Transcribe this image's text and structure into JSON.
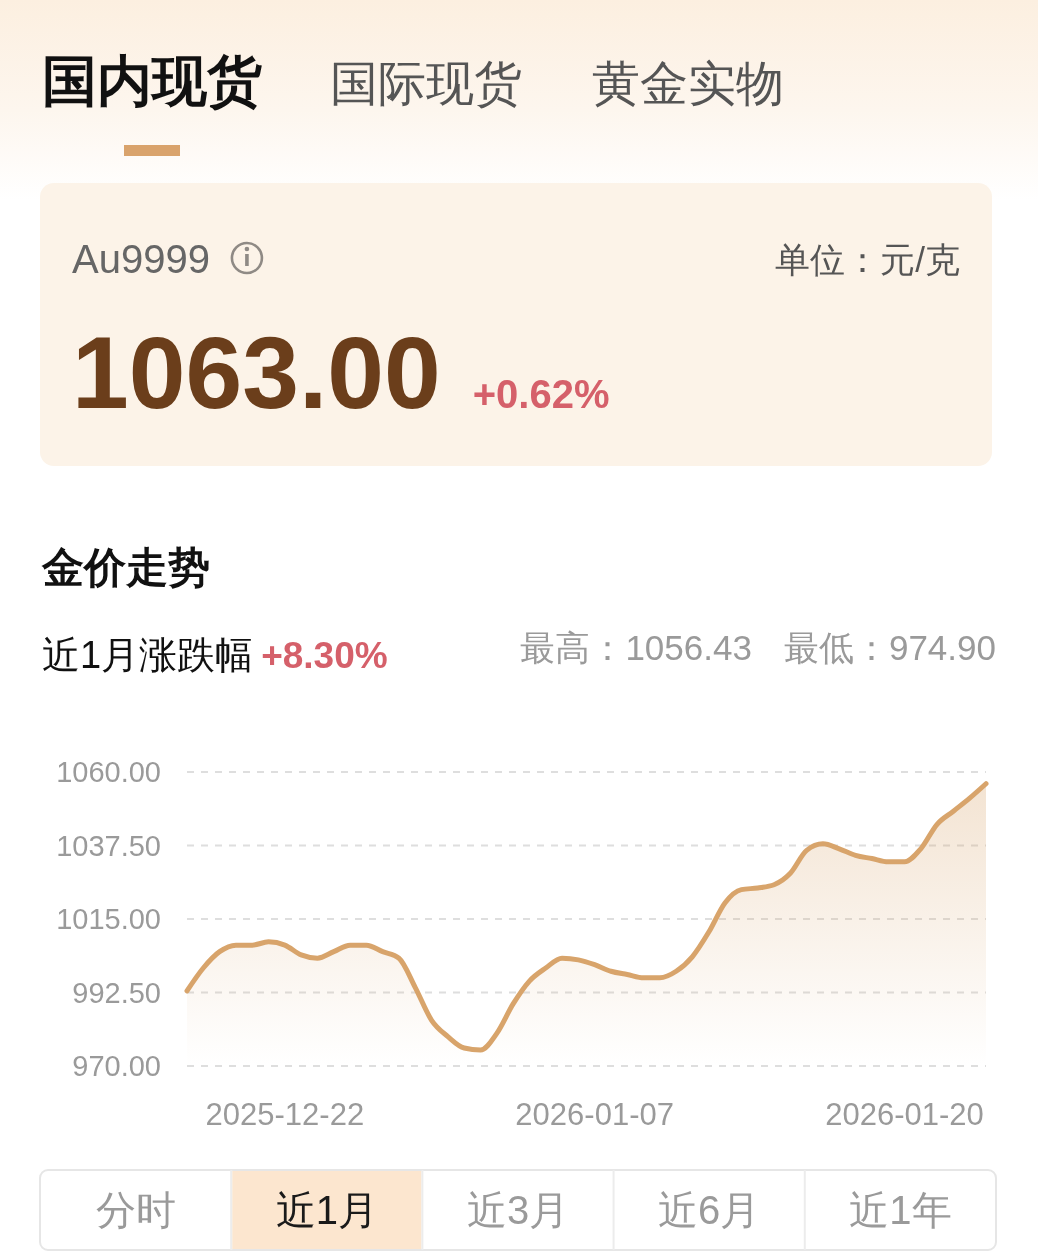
{
  "chart_data": [
    {
      "type": "other",
      "annotations": [
        "国内现货",
        "国际现货",
        "黄金实物",
        "Au9999",
        "单位：元/克",
        "1063.00",
        "+0.62%"
      ]
    },
    {
      "type": "area",
      "title": "金价走势",
      "annotations": [
        "近1月涨跌幅",
        "+8.30%",
        "最高：1056.43",
        "最低：974.90",
        "分时",
        "近1月",
        "近3月",
        "近6月",
        "近1年"
      ],
      "categories": [
        null,
        null,
        null,
        null,
        null,
        null,
        "2025-12-22",
        null,
        null,
        null,
        null,
        null,
        null,
        null,
        null,
        null,
        null,
        null,
        null,
        null,
        null,
        null,
        null,
        null,
        null,
        "2026-01-07",
        null,
        null,
        null,
        null,
        null,
        null,
        null,
        null,
        null,
        null,
        null,
        null,
        null,
        null,
        null,
        null,
        null,
        null,
        "2026-01-20",
        null,
        null,
        null,
        null,
        null
      ],
      "values": [
        993,
        1000,
        1005,
        1007,
        1007,
        1008,
        1007,
        1004,
        1003,
        1005,
        1007,
        1007,
        1005,
        1003,
        994,
        984,
        979,
        975.5,
        974.9,
        980,
        989,
        996,
        1000,
        1003,
        1002.5,
        1001,
        999,
        998,
        997,
        997,
        999,
        1003.5,
        1011,
        1020,
        1024,
        1024.5,
        1025.5,
        1029,
        1036,
        1038,
        1036.5,
        1034.5,
        1033.5,
        1032.5,
        1032.5,
        1036.5,
        1044,
        1048,
        1052,
        1056.4
      ],
      "color": "#d8a46b",
      "ylim": [
        970,
        1060
      ],
      "yticks": [
        {
          "value": 970,
          "label": "970.00"
        },
        {
          "value": 992.5,
          "label": "992.50"
        },
        {
          "value": 1015,
          "label": "1015.00"
        },
        {
          "value": 1037.5,
          "label": "1037.50"
        },
        {
          "value": 1060,
          "label": "1060.00"
        }
      ],
      "grid": "y"
    }
  ]
}
